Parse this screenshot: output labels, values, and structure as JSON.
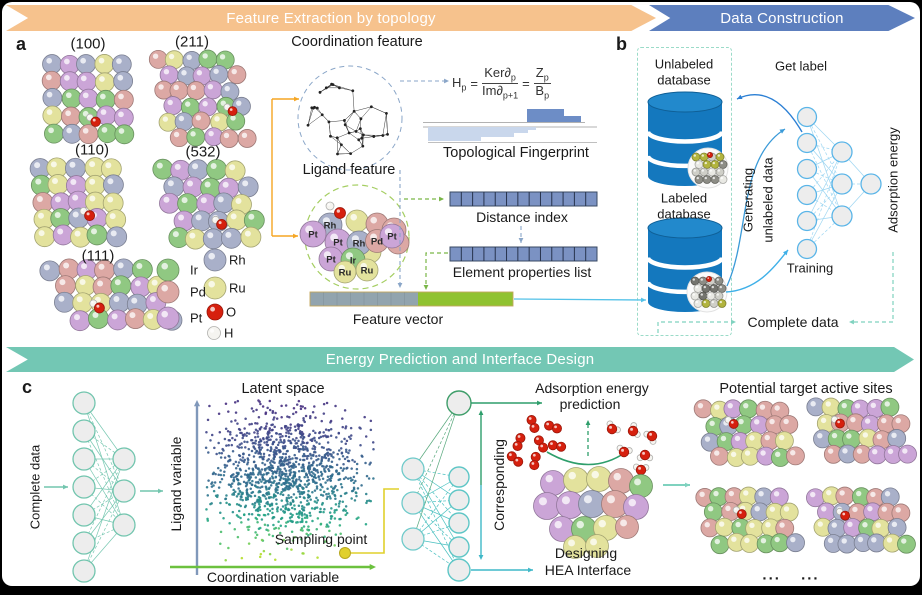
{
  "banners": {
    "feature_extraction": "Feature Extraction by topology",
    "data_construction": "Data Construction",
    "energy_prediction": "Energy Prediction and Interface Design"
  },
  "colors": {
    "banner_orange": "#f6c28d",
    "banner_blue": "#5d7fbe",
    "banner_teal": "#73c7b4",
    "ir": "#90c882",
    "pd": "#dca8a4",
    "pt": "#cba5d7",
    "rh": "#a9b0c9",
    "ru": "#e3e29d",
    "o": "#d6200e",
    "h": "#f5f4f0",
    "db_blue": "#1478be",
    "nn_blue": "#5ab5e8",
    "nn_teal": "#72c5ae",
    "nn_cyan": "#5ec6c6",
    "nn_green": "#3f9e6a",
    "bar_dark": "#7b92c3",
    "bar_light": "#c9d7ec",
    "fingerprint_dark": "#6d8dc6",
    "vector_gray": "#92a4ae",
    "vector_green": "#90c230",
    "axis_y": "#8098ba",
    "axis_x": "#6cc13e",
    "yellow": "#e0d02c",
    "dashed_teal": "#7fd2bf",
    "arrow_blue": "#2b7fd4",
    "orange_line": "#f5a623"
  },
  "panel_a": {
    "label": "a",
    "surfaces": [
      "(100)",
      "(211)",
      "(110)",
      "(532)",
      "(111)"
    ],
    "legend": [
      {
        "element": "Ir"
      },
      {
        "element": "Pd"
      },
      {
        "element": "Pt"
      },
      {
        "element": "Rh"
      },
      {
        "element": "Ru"
      },
      {
        "element": "O"
      },
      {
        "element": "H"
      }
    ]
  },
  "features": {
    "coordination_title": "Coordination feature",
    "ligand_title": "Ligand feature",
    "formula": {
      "lhs": "H",
      "lhs_sub": "p",
      "eq": "=",
      "num1": "Ker∂",
      "num1_sub": "p",
      "den1": "Im∂",
      "den1_sub": "p+1",
      "eq2": "=",
      "num2": "Z",
      "num2_sub": "p",
      "den2": "B",
      "den2_sub": "p"
    },
    "fingerprint_title": "Topological Fingerprint",
    "distance_index_title": "Distance index",
    "element_properties_title": "Element properties list",
    "feature_vector_title": "Feature vector",
    "ligand_atom_labels": [
      "Rh",
      "Pt",
      "Pt",
      "Rh",
      "Pd",
      "Pt",
      "Pt",
      "Ir",
      "Ru",
      "Ru"
    ]
  },
  "panel_b": {
    "label": "b",
    "unlabeled_db_line1": "Unlabeled",
    "unlabeled_db_line2": "database",
    "labeled_db_line1": "Labeled",
    "labeled_db_line2": "database",
    "get_label": "Get label",
    "generating_line1": "Generating",
    "generating_line2": "unlabeled data",
    "training": "Training",
    "adsorption_energy": "Adsorption energy",
    "complete_data": "Complete data"
  },
  "panel_c": {
    "label": "c",
    "complete_data": "Complete data",
    "latent_space_title": "Latent space",
    "y_axis": "Ligand variable",
    "x_axis": "Coordination variable",
    "sampling_point": "Sampling point",
    "corresponding": "Corresponding",
    "adsorption_line1": "Adsorption energy",
    "adsorption_line2": "prediction",
    "designing_line1": "Designing",
    "designing_line2": "HEA Interface",
    "potential_sites": "Potential target active sites",
    "dots": "... ..."
  }
}
